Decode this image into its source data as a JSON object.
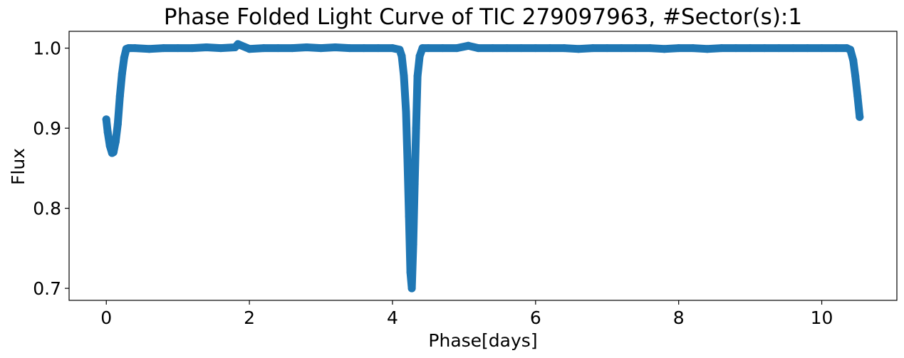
{
  "chart_data": {
    "type": "scatter",
    "title": "Phase Folded Light Curve of TIC 279097963, #Sector(s):1",
    "xlabel": "Phase[days]",
    "ylabel": "Flux",
    "xlim": [
      -0.52,
      11.05
    ],
    "ylim": [
      0.685,
      1.021
    ],
    "xticks": [
      0,
      2,
      4,
      6,
      8,
      10
    ],
    "xtick_labels": [
      "0",
      "2",
      "4",
      "6",
      "8",
      "10"
    ],
    "yticks": [
      0.7,
      0.8,
      0.9,
      1.0
    ],
    "ytick_labels": [
      "0.7",
      "0.8",
      "0.9",
      "1.0"
    ],
    "grid": false,
    "series_color": "#1f77b4",
    "x": [
      0.0,
      0.02,
      0.05,
      0.08,
      0.1,
      0.13,
      0.16,
      0.19,
      0.22,
      0.25,
      0.28,
      0.31,
      0.34,
      0.4,
      0.6,
      0.8,
      1.0,
      1.2,
      1.4,
      1.6,
      1.8,
      1.84,
      2.0,
      2.2,
      2.4,
      2.6,
      2.8,
      3.0,
      3.2,
      3.4,
      3.6,
      3.8,
      4.0,
      4.1,
      4.13,
      4.16,
      4.19,
      4.21,
      4.23,
      4.25,
      4.27,
      4.29,
      4.31,
      4.33,
      4.35,
      4.38,
      4.42,
      4.5,
      4.7,
      4.9,
      5.06,
      5.2,
      5.4,
      5.6,
      5.8,
      6.0,
      6.2,
      6.4,
      6.6,
      6.8,
      7.0,
      7.2,
      7.4,
      7.6,
      7.8,
      8.0,
      8.2,
      8.4,
      8.6,
      8.8,
      9.0,
      9.2,
      9.4,
      9.6,
      9.8,
      10.0,
      10.2,
      10.35,
      10.4,
      10.44,
      10.47,
      10.5,
      10.53
    ],
    "y": [
      0.911,
      0.895,
      0.878,
      0.869,
      0.87,
      0.883,
      0.905,
      0.94,
      0.968,
      0.988,
      0.999,
      1.0,
      1.0,
      1.0,
      0.999,
      1.0,
      1.0,
      1.0,
      1.001,
      1.0,
      1.001,
      1.005,
      0.999,
      1.0,
      1.0,
      1.0,
      1.001,
      1.0,
      1.001,
      1.0,
      1.0,
      1.0,
      1.0,
      0.998,
      0.99,
      0.965,
      0.92,
      0.86,
      0.79,
      0.72,
      0.7,
      0.755,
      0.83,
      0.9,
      0.965,
      0.99,
      1.0,
      1.0,
      1.0,
      1.0,
      1.003,
      1.0,
      1.0,
      1.0,
      1.0,
      1.0,
      1.0,
      1.0,
      0.999,
      1.0,
      1.0,
      1.0,
      1.0,
      1.0,
      0.999,
      1.0,
      1.0,
      0.999,
      1.0,
      1.0,
      1.0,
      1.0,
      1.0,
      1.0,
      1.0,
      1.0,
      1.0,
      1.0,
      0.998,
      0.985,
      0.965,
      0.94,
      0.914
    ]
  }
}
